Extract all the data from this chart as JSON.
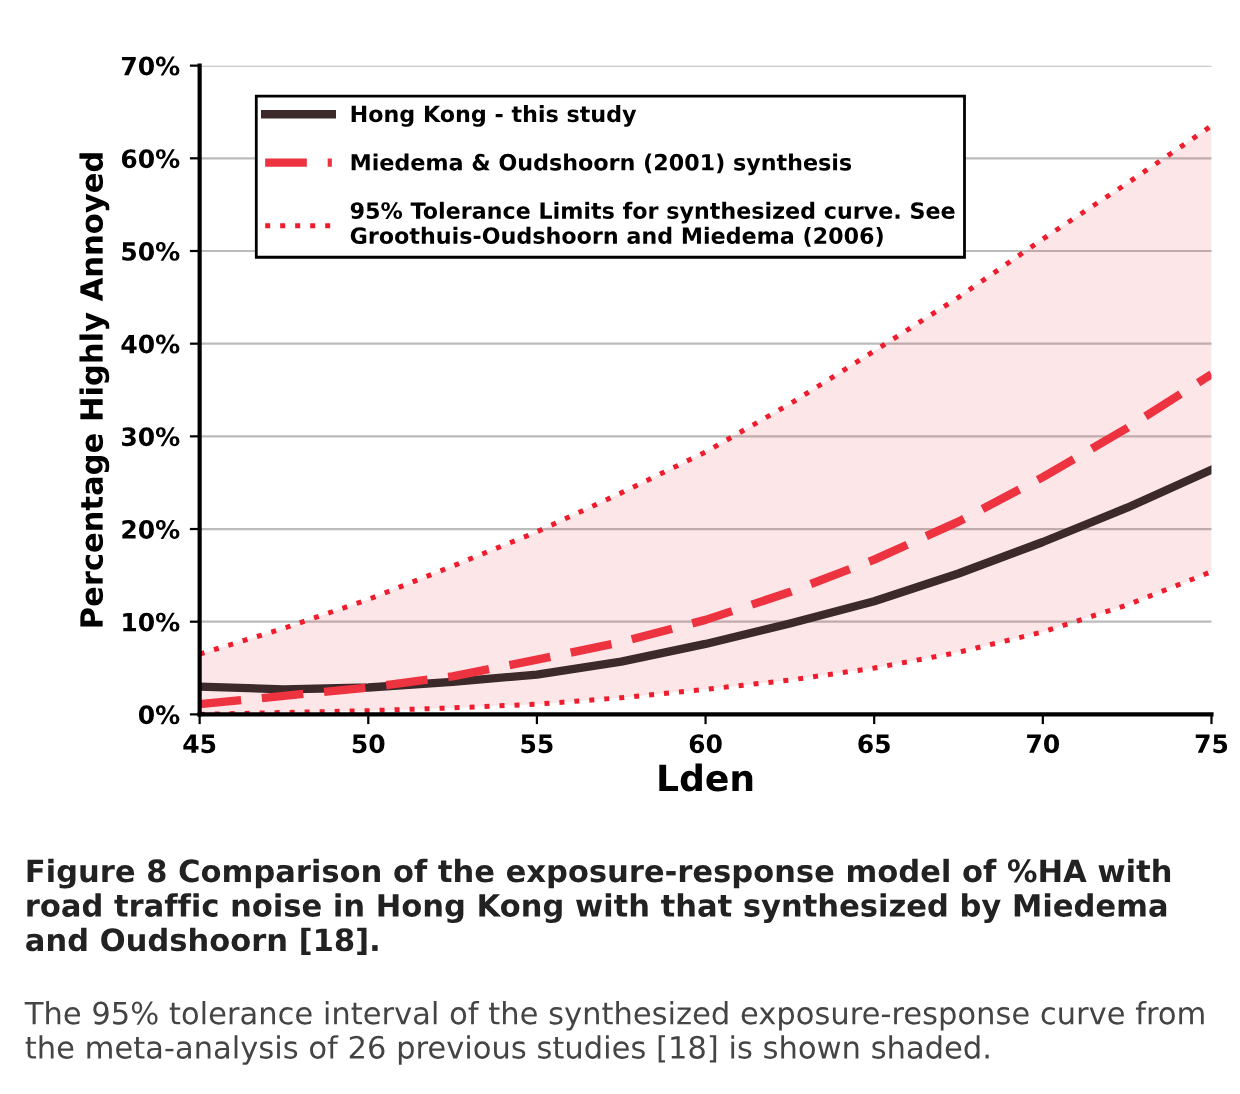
{
  "chart_data": {
    "type": "line",
    "xlabel": "Lden",
    "ylabel": "Percentage Highly Annoyed",
    "x": [
      45,
      47.5,
      50,
      52.5,
      55,
      57.5,
      60,
      62.5,
      65,
      67.5,
      70,
      72.5,
      75
    ],
    "series": [
      {
        "name": "Hong Kong - this study",
        "color": "#3c2a2a",
        "line_style": "solid",
        "values": [
          3.0,
          2.7,
          2.9,
          3.5,
          4.3,
          5.7,
          7.6,
          9.8,
          12.2,
          15.2,
          18.6,
          22.3,
          26.4
        ]
      },
      {
        "name": "Miedema & Oudshoorn (2001) synthesis",
        "color": "#ee3340",
        "line_style": "dashed",
        "values": [
          1.1,
          2.0,
          2.9,
          4.1,
          5.9,
          7.8,
          10.2,
          13.2,
          16.7,
          20.8,
          25.6,
          30.9,
          36.7
        ],
        "lower": [
          0,
          0.2,
          0.4,
          0.7,
          1.1,
          1.8,
          2.7,
          3.7,
          5.0,
          6.7,
          8.9,
          11.8,
          15.4
        ],
        "upper": [
          6.5,
          9.3,
          12.4,
          16.0,
          19.7,
          23.9,
          28.3,
          33.5,
          39.2,
          45.0,
          51.3,
          57.3,
          63.5
        ]
      },
      {
        "name": "95% Tolerance Limits for synthesized curve. See\nGroothuis-Oudshoorn and Miedema (2006)",
        "color": "#ee1c2c",
        "line_style": "dotted",
        "values": [
          6.5,
          9.3,
          12.4,
          16.0,
          19.7,
          23.9,
          28.3,
          33.5,
          39.2,
          45.0,
          51.3,
          57.3,
          63.5
        ]
      },
      {
        "color": "#ee1c2c",
        "line_style": "dotted",
        "values": [
          0,
          0.2,
          0.4,
          0.7,
          1.1,
          1.8,
          2.7,
          3.7,
          5.0,
          6.7,
          8.9,
          11.8,
          15.4
        ]
      }
    ],
    "xlim": [
      45,
      75
    ],
    "xticks": [
      45,
      50,
      55,
      60,
      65,
      70,
      75
    ],
    "ylim": [
      0,
      70
    ],
    "yticks": [
      {
        "value": 0,
        "label": "0%"
      },
      {
        "value": 10,
        "label": "10%"
      },
      {
        "value": 20,
        "label": "20%"
      },
      {
        "value": 30,
        "label": "30%"
      },
      {
        "value": 40,
        "label": "40%"
      },
      {
        "value": 50,
        "label": "50%"
      },
      {
        "value": 60,
        "label": "60%"
      },
      {
        "value": 70,
        "label": "70%"
      }
    ],
    "grid": "y",
    "legend": "top left",
    "marker": "none",
    "annotations": [
      "Figure 8 Comparison of the exposure-response model of %HA with road traffic noise in Hong Kong with that synthesized by Miedema and Oudshoorn [18].",
      "The 95% tolerance interval of the synthesized exposure-response curve from the meta-analysis of 26 previous studies [18] is shown shaded."
    ]
  }
}
